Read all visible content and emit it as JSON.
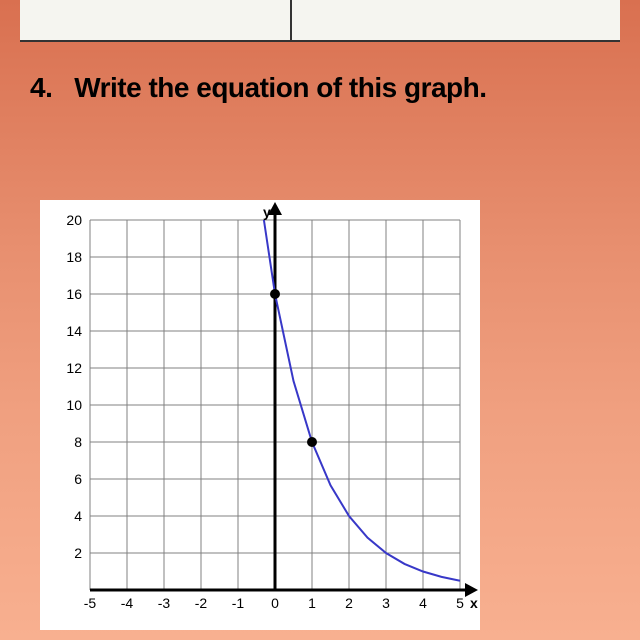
{
  "question": {
    "number": "4.",
    "text": "Write the equation of this graph."
  },
  "chart": {
    "type": "line",
    "xlim": [
      -5,
      5
    ],
    "ylim": [
      0,
      20
    ],
    "xtick_step": 1,
    "ytick_step": 2,
    "xticks": [
      -5,
      -4,
      -3,
      -2,
      -1,
      0,
      1,
      2,
      3,
      4,
      5
    ],
    "yticks": [
      0,
      2,
      4,
      6,
      8,
      10,
      12,
      14,
      16,
      18,
      20
    ],
    "xlabel": "x",
    "ylabel": "y",
    "curve_color": "#3838c8",
    "curve_width": 2,
    "grid_color": "#808080",
    "grid_width": 1,
    "axis_color": "#000000",
    "axis_width": 3,
    "background_color": "#ffffff",
    "tick_fontsize": 14,
    "tick_color": "#000000",
    "points": [
      {
        "x": 0,
        "y": 16
      },
      {
        "x": 1,
        "y": 8
      }
    ],
    "point_radius": 5,
    "point_color": "#000000",
    "curve_data": [
      {
        "x": -0.3,
        "y": 20
      },
      {
        "x": 0,
        "y": 16
      },
      {
        "x": 0.5,
        "y": 11.3
      },
      {
        "x": 1,
        "y": 8
      },
      {
        "x": 1.5,
        "y": 5.66
      },
      {
        "x": 2,
        "y": 4
      },
      {
        "x": 2.5,
        "y": 2.83
      },
      {
        "x": 3,
        "y": 2
      },
      {
        "x": 3.5,
        "y": 1.41
      },
      {
        "x": 4,
        "y": 1
      },
      {
        "x": 4.5,
        "y": 0.71
      },
      {
        "x": 5,
        "y": 0.5
      }
    ]
  }
}
